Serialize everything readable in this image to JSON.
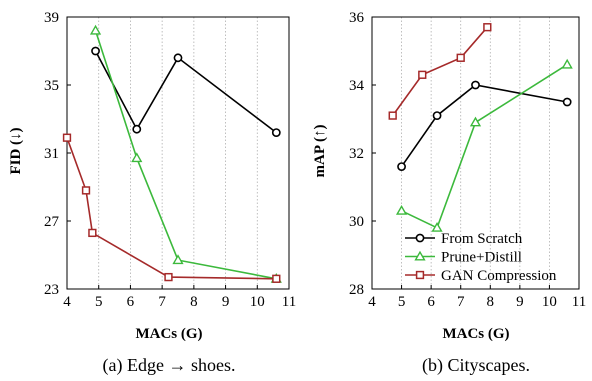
{
  "chart_data": [
    {
      "type": "line",
      "xlabel": "MACs (G)",
      "ylabel": "FID (↓)",
      "caption": "(a) Edge → shoes.",
      "xlim": [
        4,
        11
      ],
      "ylim": [
        23,
        39
      ],
      "xticks": [
        "4",
        "5",
        "6",
        "7",
        "8",
        "9",
        "10",
        "11"
      ],
      "yticks": [
        "23",
        "27",
        "31",
        "35",
        "39"
      ],
      "grid": "vertical dotted",
      "series": [
        {
          "name": "From Scratch",
          "marker": "circle",
          "color": "#000000",
          "x": [
            4.9,
            6.2,
            7.5,
            10.6
          ],
          "y": [
            37.0,
            32.4,
            36.6,
            32.2
          ]
        },
        {
          "name": "Prune+Distill",
          "marker": "triangle",
          "color": "#3cb93c",
          "x": [
            4.9,
            6.2,
            7.5,
            10.6
          ],
          "y": [
            38.2,
            30.7,
            24.7,
            23.6
          ]
        },
        {
          "name": "GAN Compression",
          "marker": "square",
          "color": "#a52a2a",
          "x": [
            4.0,
            4.6,
            4.8,
            7.2,
            10.6
          ],
          "y": [
            31.9,
            28.8,
            26.3,
            23.7,
            23.6
          ]
        }
      ]
    },
    {
      "type": "line",
      "xlabel": "MACs (G)",
      "ylabel": "mAP (↑)",
      "caption": "(b) Cityscapes.",
      "xlim": [
        4,
        11
      ],
      "ylim": [
        28,
        36
      ],
      "xticks": [
        "4",
        "5",
        "6",
        "7",
        "8",
        "9",
        "10",
        "11"
      ],
      "yticks": [
        "28",
        "30",
        "32",
        "34",
        "36"
      ],
      "grid": "vertical dotted",
      "legend": "bottom-right",
      "series": [
        {
          "name": "From Scratch",
          "marker": "circle",
          "color": "#000000",
          "x": [
            5.0,
            6.2,
            7.5,
            10.6
          ],
          "y": [
            31.6,
            33.1,
            34.0,
            33.5
          ]
        },
        {
          "name": "Prune+Distill",
          "marker": "triangle",
          "color": "#3cb93c",
          "x": [
            5.0,
            6.2,
            7.5,
            10.6
          ],
          "y": [
            30.3,
            29.8,
            32.9,
            34.6
          ]
        },
        {
          "name": "GAN Compression",
          "marker": "square",
          "color": "#a52a2a",
          "x": [
            4.7,
            5.7,
            7.0,
            7.9
          ],
          "y": [
            33.1,
            34.3,
            34.8,
            35.7
          ]
        }
      ]
    }
  ]
}
